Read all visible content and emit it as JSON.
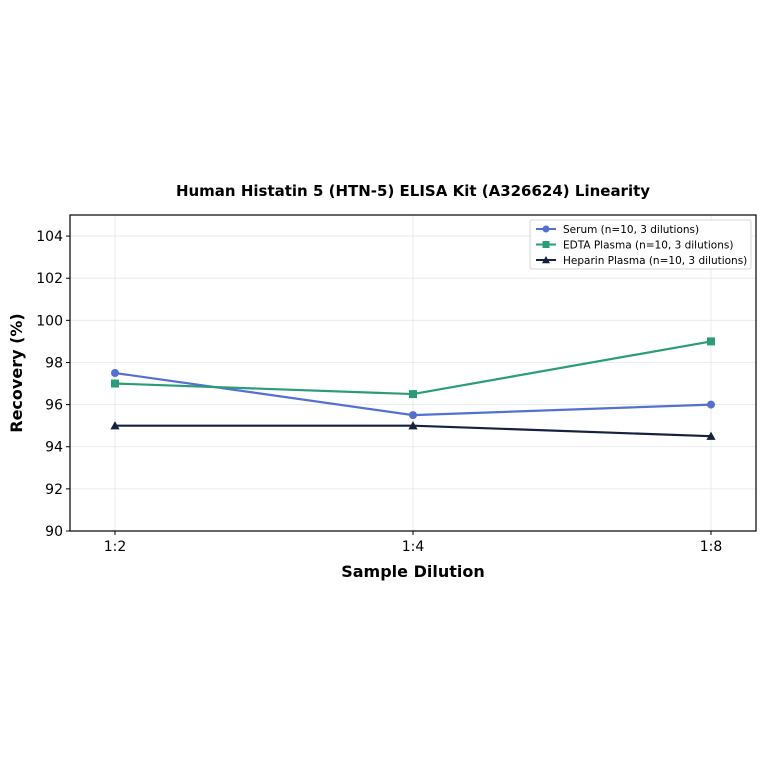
{
  "chart_data": {
    "type": "line",
    "title": "Human Histatin 5 (HTN-5) ELISA Kit (A326624) Linearity",
    "xlabel": "Sample Dilution",
    "ylabel": "Recovery (%)",
    "categories": [
      "1:2",
      "1:4",
      "1:8"
    ],
    "ylim": [
      90,
      105
    ],
    "yticks": [
      90,
      92,
      94,
      96,
      98,
      100,
      102,
      104
    ],
    "grid": true,
    "legend_position": "top-right",
    "series": [
      {
        "name": "Serum (n=10, 3 dilutions)",
        "values": [
          97.5,
          95.5,
          96.0
        ],
        "color": "#5470d0",
        "marker": "circle"
      },
      {
        "name": "EDTA Plasma (n=10, 3 dilutions)",
        "values": [
          97.0,
          96.5,
          99.0
        ],
        "color": "#2a9d78",
        "marker": "square"
      },
      {
        "name": "Heparin Plasma (n=10, 3 dilutions)",
        "values": [
          95.0,
          95.0,
          94.5
        ],
        "color": "#16213e",
        "marker": "triangle"
      }
    ]
  }
}
